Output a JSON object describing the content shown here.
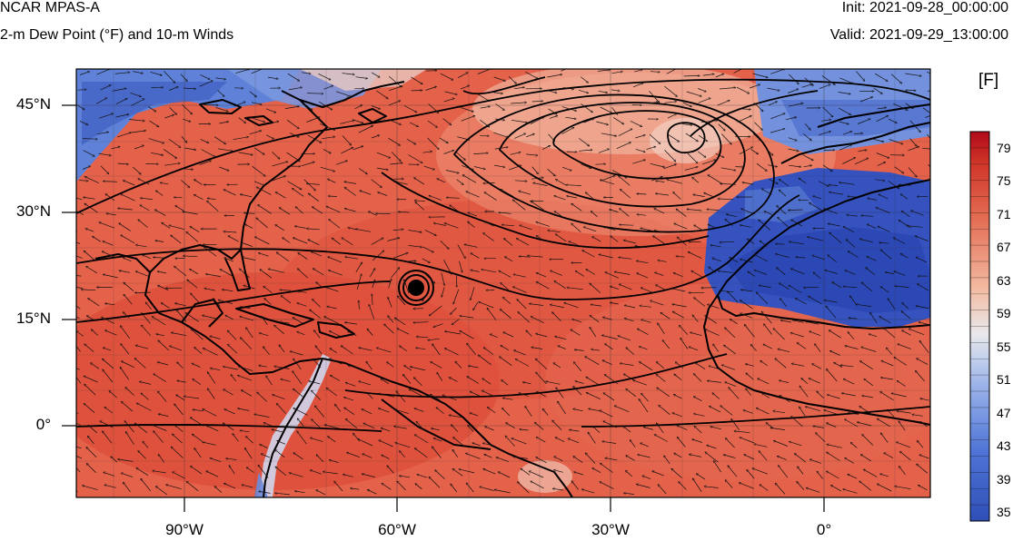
{
  "header": {
    "model": "NCAR MPAS-A",
    "field": "2-m Dew Point (°F) and 10-m Winds",
    "init": "Init: 2021-09-28_00:00:00",
    "valid": "Valid: 2021-09-29_13:00:00"
  },
  "axes": {
    "lat_labels": [
      "45°N",
      "30°N",
      "15°N",
      "0°"
    ],
    "lon_labels": [
      "90°W",
      "60°W",
      "30°W",
      "0°"
    ]
  },
  "colorbar": {
    "units": "[F]",
    "labels": [
      "79",
      "75",
      "71",
      "67",
      "63",
      "59",
      "55",
      "51",
      "47",
      "43",
      "39",
      "35"
    ],
    "colors": {
      "low": "#2f4fb6",
      "mid": "#e9e9ec",
      "high": "#b1091b"
    }
  },
  "features": {
    "hurricane": "hurricane-eye-icon",
    "wind_vectors": "wind-arrow-icon"
  }
}
